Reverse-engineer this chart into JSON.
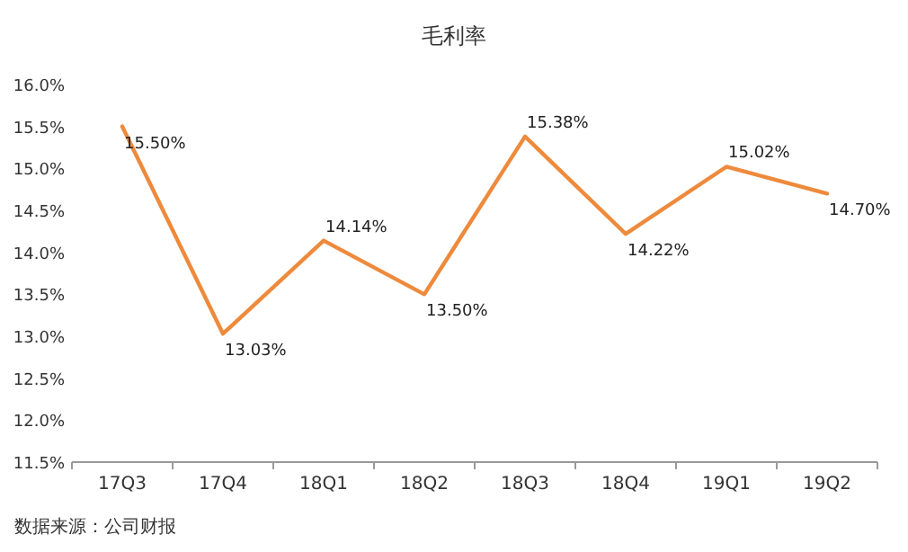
{
  "chart_data": {
    "type": "line",
    "title": "毛利率",
    "categories": [
      "17Q3",
      "17Q4",
      "18Q1",
      "18Q2",
      "18Q3",
      "18Q4",
      "19Q1",
      "19Q2"
    ],
    "series": [
      {
        "color": "#ee8a3c",
        "values": [
          15.5,
          13.03,
          14.14,
          13.5,
          15.38,
          14.22,
          15.02,
          14.7
        ],
        "value_labels": [
          "15.50%",
          "13.03%",
          "14.14%",
          "13.50%",
          "15.38%",
          "14.22%",
          "15.02%",
          "14.70%"
        ]
      }
    ],
    "ylim": [
      11.5,
      16.0
    ],
    "yticks": [
      {
        "value": 11.5,
        "label": "11.5%"
      },
      {
        "value": 12.0,
        "label": "12.0%"
      },
      {
        "value": 12.5,
        "label": "12.5%"
      },
      {
        "value": 13.0,
        "label": "13.0%"
      },
      {
        "value": 13.5,
        "label": "13.5%"
      },
      {
        "value": 14.0,
        "label": "14.0%"
      },
      {
        "value": 14.5,
        "label": "14.5%"
      },
      {
        "value": 15.0,
        "label": "15.0%"
      },
      {
        "value": 15.5,
        "label": "15.5%"
      },
      {
        "value": 16.0,
        "label": "16.0%"
      }
    ],
    "grid": false,
    "marker": "none",
    "line_style": "solid",
    "annotations": [
      "数据来源：公司财报"
    ]
  }
}
